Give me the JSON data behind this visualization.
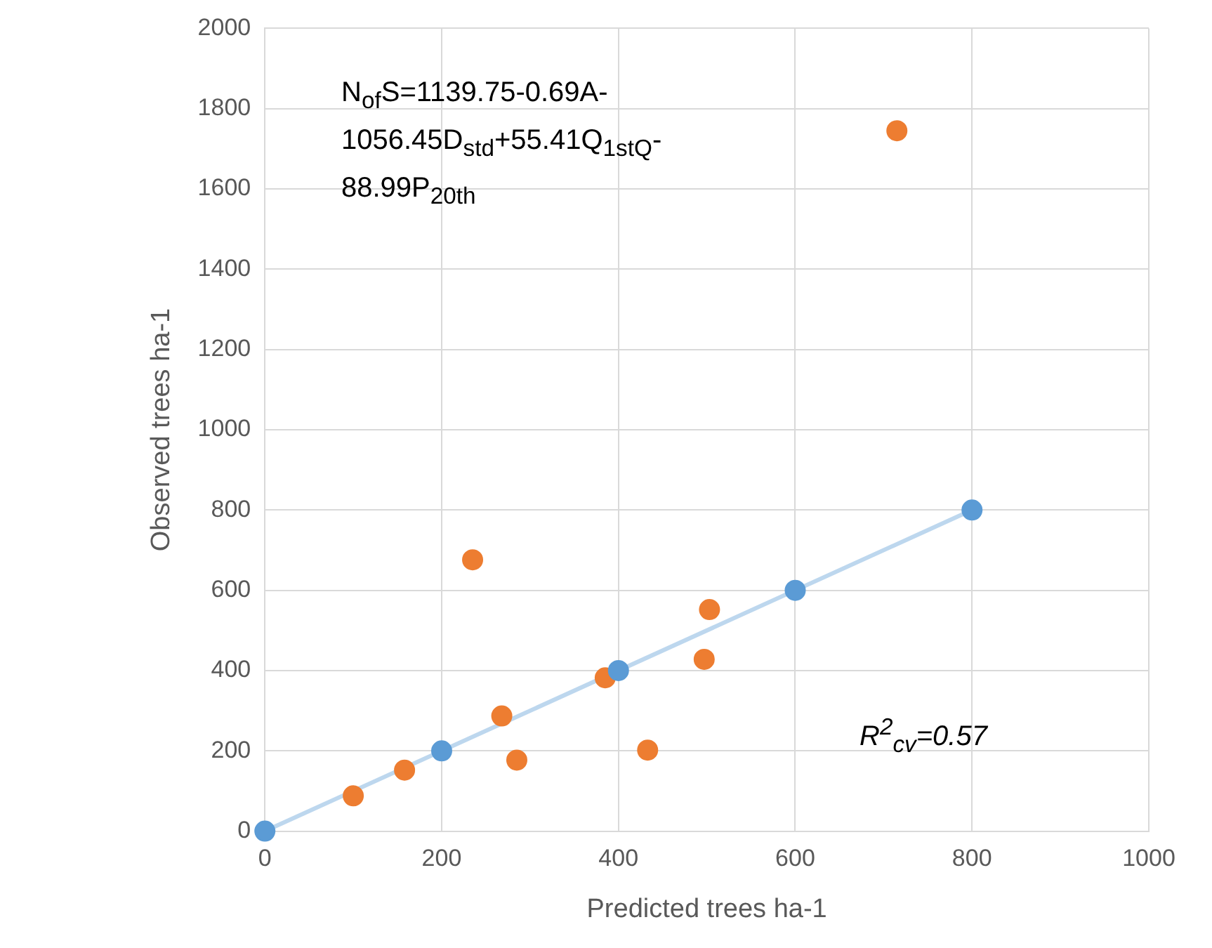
{
  "chart_data": {
    "type": "scatter",
    "xlabel": "Predicted trees ha-1",
    "ylabel": "Observed trees ha-1",
    "xlim": [
      0,
      1000
    ],
    "xticks": [
      0,
      200,
      400,
      600,
      800,
      1000
    ],
    "ylim": [
      0,
      2000
    ],
    "yticks": [
      0,
      200,
      400,
      600,
      800,
      1000,
      1200,
      1400,
      1600,
      1800,
      2000
    ],
    "grid": true,
    "legend": false,
    "marker": "circle",
    "series": [
      {
        "type": "line",
        "marker": "none",
        "color": "#bdd7ee",
        "x": [
          0,
          800
        ],
        "values": [
          0,
          800
        ]
      },
      {
        "color": "#5b9bd5",
        "x": [
          0,
          200,
          400,
          600,
          800
        ],
        "values": [
          0,
          200,
          400,
          600,
          800
        ]
      },
      {
        "color": "#ed7d31",
        "x": [
          100,
          158,
          235,
          268,
          285,
          385,
          433,
          497,
          503,
          715
        ],
        "values": [
          88,
          152,
          676,
          287,
          177,
          382,
          202,
          428,
          552,
          1745
        ]
      }
    ],
    "annotations": [
      "N$_{of}$S=1139.75-0.69A-1056.45D$_{std}$+55.41Q$_{1stQ}$-88.99P$_{20th}$",
      "R$^{2}$$_{cv}$=0.57"
    ]
  }
}
